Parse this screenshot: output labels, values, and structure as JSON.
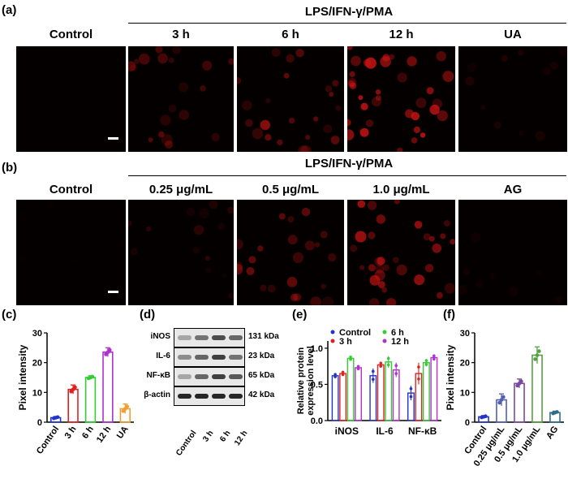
{
  "panel_labels": {
    "a": "(a)",
    "b": "(b)",
    "c": "(c)",
    "d": "(d)",
    "e": "(e)",
    "f": "(f)"
  },
  "row_a": {
    "header": "LPS/IFN-γ/PMA",
    "columns": [
      "Control",
      "3 h",
      "6 h",
      "12 h",
      "UA"
    ],
    "intensity": [
      0.0,
      0.45,
      0.6,
      0.95,
      0.15
    ]
  },
  "row_b": {
    "header": "LPS/IFN-γ/PMA",
    "columns": [
      "Control",
      "0.25 μg/mL",
      "0.5 μg/mL",
      "1.0 μg/mL",
      "AG"
    ],
    "intensity": [
      0.03,
      0.25,
      0.55,
      0.85,
      0.08
    ]
  },
  "blot": {
    "rows": [
      "iNOS",
      "IL-6",
      "NF-κB",
      "β-actin"
    ],
    "kda": [
      "131 kDa",
      "23 kDa",
      "65 kDa",
      "42 kDa"
    ],
    "lanes": [
      "Control",
      "3 h",
      "6 h",
      "12 h"
    ]
  },
  "chart_data": [
    {
      "panel": "c",
      "type": "bar",
      "ylabel": "Pixel intensity",
      "categories": [
        "Control",
        "3 h",
        "6 h",
        "12 h",
        "UA"
      ],
      "values": [
        1.5,
        11,
        15,
        23.5,
        4.5
      ],
      "errors": [
        0.4,
        1.5,
        0.6,
        1.5,
        1.6
      ],
      "colors": [
        "#2233cc",
        "#e02020",
        "#33cc33",
        "#b030d0",
        "#f0a030"
      ],
      "ylim": [
        0,
        30
      ],
      "yticks": [
        0,
        10,
        20,
        30
      ]
    },
    {
      "panel": "e",
      "type": "bar",
      "ylabel": "Relative protein expression level",
      "categories": [
        "iNOS",
        "IL-6",
        "NF-κB"
      ],
      "series": [
        {
          "name": "Control",
          "color": "#2233cc",
          "values": [
            0.62,
            0.62,
            0.38
          ],
          "errors": [
            0.03,
            0.1,
            0.1
          ]
        },
        {
          "name": "3 h",
          "color": "#e02020",
          "values": [
            0.65,
            0.77,
            0.65
          ],
          "errors": [
            0.03,
            0.04,
            0.15
          ]
        },
        {
          "name": "6 h",
          "color": "#33cc33",
          "values": [
            0.86,
            0.81,
            0.8
          ],
          "errors": [
            0.03,
            0.08,
            0.05
          ]
        },
        {
          "name": "12 h",
          "color": "#b030d0",
          "values": [
            0.73,
            0.7,
            0.87
          ],
          "errors": [
            0.03,
            0.1,
            0.04
          ]
        }
      ],
      "ylim": [
        0,
        1.1
      ],
      "yticks": [
        0.0,
        0.5,
        1.0
      ]
    },
    {
      "panel": "f",
      "type": "bar",
      "ylabel": "Pixel intensity",
      "categories": [
        "Control",
        "0.25 μg/mL",
        "0.5 μg/mL",
        "1.0 μg/mL",
        "AG"
      ],
      "values": [
        1.8,
        7.5,
        13,
        22.5,
        3.2
      ],
      "errors": [
        0.4,
        2,
        1.5,
        2.8,
        0.5
      ],
      "colors": [
        "#2233cc",
        "#5060b0",
        "#7a4aa0",
        "#55a040",
        "#2c6e88"
      ],
      "ylim": [
        0,
        30
      ],
      "yticks": [
        0,
        10,
        20,
        30
      ]
    }
  ]
}
